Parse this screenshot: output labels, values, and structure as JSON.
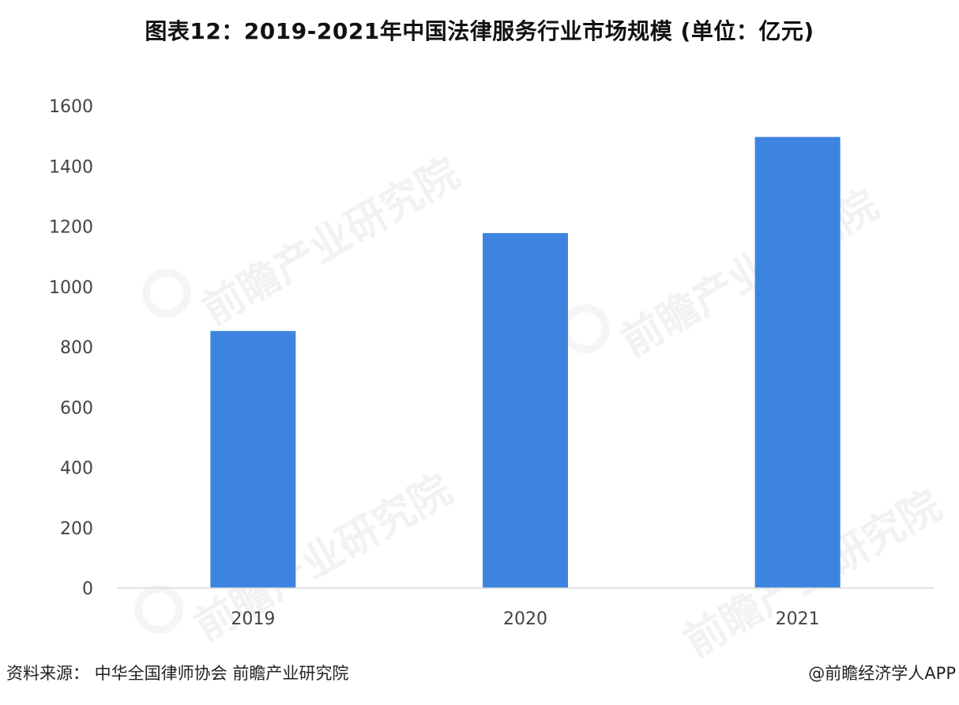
{
  "title": "图表12：2019-2021年中国法律服务行业市场规模 (单位：亿元)",
  "source_text": "资料来源：  中华全国律师协会  前瞻产业研究院",
  "brand_text": "@前瞻经济学人APP",
  "watermark_text": "前瞻产业研究院",
  "colors": {
    "bar": "#3d84e0",
    "axis": "#d9d9d9",
    "tick_text": "#444444"
  },
  "chart_data": {
    "type": "bar",
    "title": "图表12：2019-2021年中国法律服务行业市场规模 (单位：亿元)",
    "categories": [
      "2019",
      "2020",
      "2021"
    ],
    "values": [
      853,
      1178,
      1497
    ],
    "xlabel": "",
    "ylabel": "",
    "ylim": [
      0,
      1600
    ],
    "yticks": [
      0,
      200,
      400,
      600,
      800,
      1000,
      1200,
      1400,
      1600
    ],
    "grid": false,
    "legend": "none"
  }
}
